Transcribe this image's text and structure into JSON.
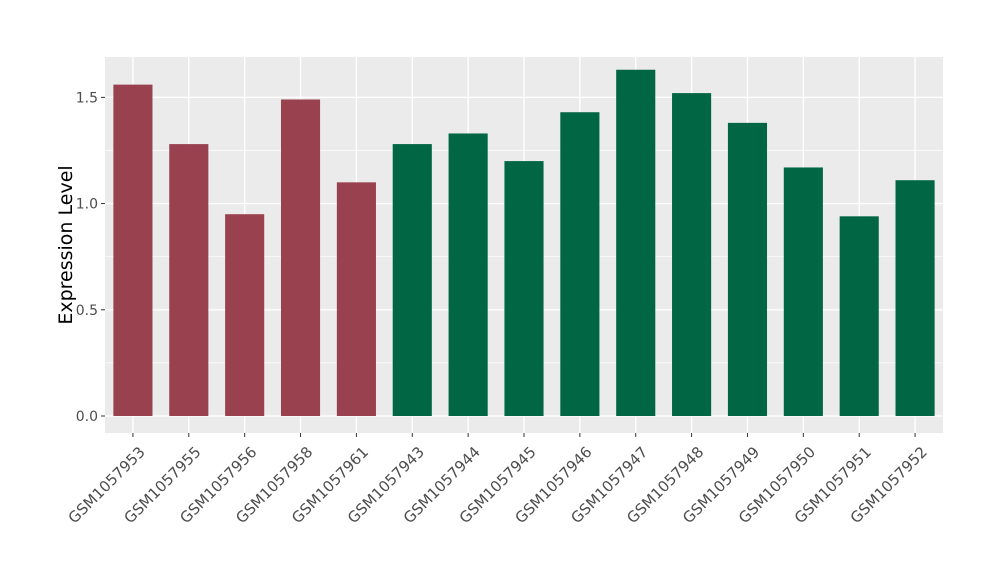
{
  "chart_data": {
    "type": "bar",
    "title": "",
    "xlabel": "",
    "ylabel": "Expression Level",
    "ylim": [
      -0.08,
      1.69
    ],
    "yticks": [
      0.0,
      0.5,
      1.0,
      1.5
    ],
    "ytick_labels": [
      "0.0",
      "0.5",
      "1.0",
      "1.5"
    ],
    "grid": true,
    "legend": "none",
    "categories": [
      "GSM1057953",
      "GSM1057955",
      "GSM1057956",
      "GSM1057958",
      "GSM1057961",
      "GSM1057943",
      "GSM1057944",
      "GSM1057945",
      "GSM1057946",
      "GSM1057947",
      "GSM1057948",
      "GSM1057949",
      "GSM1057950",
      "GSM1057951",
      "GSM1057952"
    ],
    "values": [
      1.56,
      1.28,
      0.95,
      1.49,
      1.1,
      1.28,
      1.33,
      1.2,
      1.43,
      1.63,
      1.52,
      1.38,
      1.17,
      0.94,
      1.11
    ],
    "groups": [
      "a",
      "a",
      "a",
      "a",
      "a",
      "b",
      "b",
      "b",
      "b",
      "b",
      "b",
      "b",
      "b",
      "b",
      "b"
    ],
    "colors": {
      "a": "#99414f",
      "b": "#006644",
      "panel": "#ebebeb",
      "grid": "#ffffff",
      "axis_text": "#4d4d4d",
      "title_text": "#000000"
    }
  }
}
